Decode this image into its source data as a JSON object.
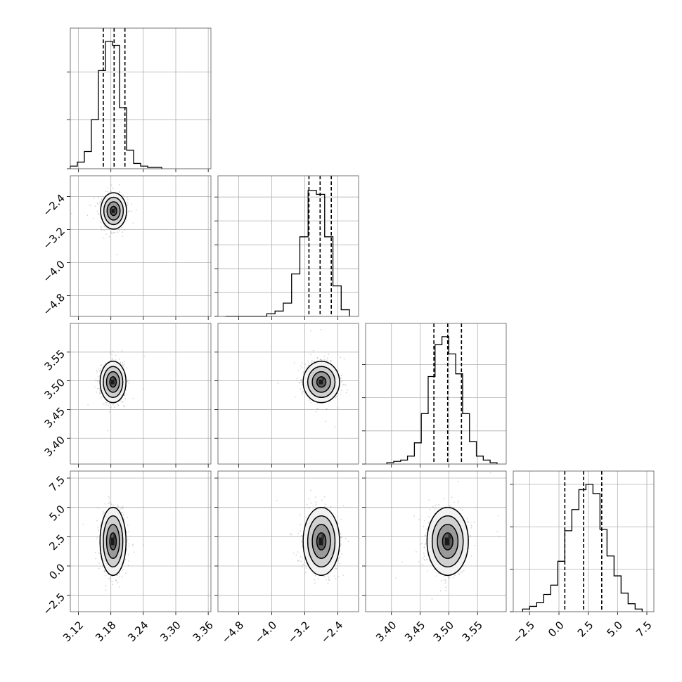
{
  "chart_data": {
    "type": "corner",
    "title": "",
    "grid": true,
    "parameters": [
      {
        "index": 0,
        "range": [
          3.105,
          3.365
        ],
        "ticks": [
          3.12,
          3.18,
          3.24,
          3.3,
          3.36
        ],
        "tick_labels": [
          "3.12",
          "3.18",
          "3.24",
          "3.30",
          "3.36"
        ],
        "quantiles": [
          3.166,
          3.186,
          3.206
        ],
        "hist": {
          "edges": [
            3.105,
            3.118,
            3.131,
            3.144,
            3.157,
            3.17,
            3.183,
            3.196,
            3.209,
            3.222,
            3.235,
            3.248,
            3.261,
            3.274
          ],
          "values": [
            0.02,
            0.05,
            0.13,
            0.37,
            0.74,
            0.96,
            0.93,
            0.46,
            0.14,
            0.04,
            0.02,
            0.01,
            0.01
          ]
        },
        "hist_ticks": [
          0.0,
          0.37,
          0.73
        ]
      },
      {
        "index": 1,
        "range": [
          -5.3,
          -1.9
        ],
        "ticks": [
          -4.8,
          -4.0,
          -3.2,
          -2.4
        ],
        "tick_labels": [
          "−4.8",
          "−4.0",
          "−3.2",
          "−2.4"
        ],
        "quantiles": [
          -3.1,
          -2.83,
          -2.56
        ],
        "hist": {
          "edges": [
            -5.12,
            -4.92,
            -4.72,
            -4.52,
            -4.32,
            -4.12,
            -3.92,
            -3.72,
            -3.52,
            -3.32,
            -3.12,
            -2.92,
            -2.72,
            -2.52,
            -2.32,
            -2.12
          ],
          "values": [
            0.0,
            0.0,
            0.0,
            0.0,
            0.0,
            0.02,
            0.04,
            0.1,
            0.32,
            0.6,
            0.95,
            0.92,
            0.6,
            0.23,
            0.05
          ]
        },
        "hist_ticks": [
          0.0,
          0.18,
          0.36,
          0.54,
          0.72,
          0.9
        ]
      },
      {
        "index": 2,
        "range": [
          3.355,
          3.6
        ],
        "ticks": [
          3.4,
          3.45,
          3.5,
          3.55
        ],
        "tick_labels": [
          "3.40",
          "3.45",
          "3.50",
          "3.55"
        ],
        "quantiles": [
          3.474,
          3.498,
          3.522
        ],
        "hist": {
          "edges": [
            3.392,
            3.404,
            3.416,
            3.428,
            3.44,
            3.452,
            3.464,
            3.476,
            3.488,
            3.5,
            3.512,
            3.524,
            3.536,
            3.548,
            3.56,
            3.572,
            3.584
          ],
          "values": [
            0.01,
            0.02,
            0.03,
            0.06,
            0.16,
            0.38,
            0.66,
            0.9,
            0.96,
            0.83,
            0.68,
            0.38,
            0.17,
            0.06,
            0.03,
            0.01
          ]
        },
        "hist_ticks": [
          0.0,
          0.25,
          0.5,
          0.75
        ]
      },
      {
        "index": 3,
        "range": [
          -3.9,
          8.1
        ],
        "ticks": [
          -2.5,
          0.0,
          2.5,
          5.0,
          7.5
        ],
        "tick_labels": [
          "−2.5",
          "0.0",
          "2.5",
          "5.0",
          "7.5"
        ],
        "quantiles": [
          0.5,
          2.1,
          3.65
        ],
        "hist": {
          "edges": [
            -3.1,
            -2.5,
            -1.9,
            -1.3,
            -0.7,
            -0.1,
            0.5,
            1.1,
            1.7,
            2.3,
            2.9,
            3.5,
            4.1,
            4.7,
            5.3,
            5.9,
            6.5,
            7.1
          ],
          "values": [
            0.02,
            0.04,
            0.07,
            0.13,
            0.2,
            0.38,
            0.61,
            0.77,
            0.92,
            0.96,
            0.89,
            0.62,
            0.42,
            0.27,
            0.14,
            0.06,
            0.02
          ]
        },
        "hist_ticks": [
          0.0,
          0.32,
          0.64,
          0.96
        ]
      }
    ],
    "joint": [
      {
        "row": 1,
        "col": 0,
        "center": [
          3.185,
          -2.75
        ],
        "sd": [
          0.012,
          0.22
        ]
      },
      {
        "row": 2,
        "col": 0,
        "center": [
          3.184,
          3.498
        ],
        "sd": [
          0.012,
          0.018
        ]
      },
      {
        "row": 2,
        "col": 1,
        "center": [
          -2.8,
          3.498
        ],
        "sd": [
          0.22,
          0.018
        ]
      },
      {
        "row": 3,
        "col": 0,
        "center": [
          3.184,
          2.1
        ],
        "sd": [
          0.012,
          1.45
        ]
      },
      {
        "row": 3,
        "col": 1,
        "center": [
          -2.8,
          2.1
        ],
        "sd": [
          0.22,
          1.45
        ]
      },
      {
        "row": 3,
        "col": 2,
        "center": [
          3.498,
          2.1
        ],
        "sd": [
          0.018,
          1.45
        ]
      }
    ],
    "contour_levels_sigma": [
      0.5,
      1.0,
      1.5,
      2.0
    ]
  }
}
